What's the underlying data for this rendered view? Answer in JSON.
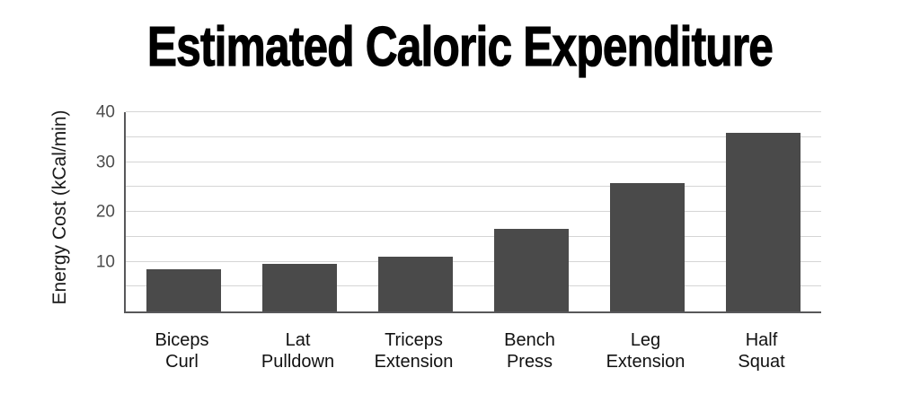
{
  "chart_data": {
    "type": "bar",
    "title": "Estimated Caloric Expenditure",
    "ylabel": "Energy Cost (kCal/min)",
    "xlabel": "",
    "categories": [
      "Biceps\nCurl",
      "Lat\nPulldown",
      "Triceps\nExtension",
      "Bench\nPress",
      "Leg\nExtension",
      "Half\nSquat"
    ],
    "values": [
      8.5,
      9.5,
      11,
      16.6,
      25.8,
      35.9
    ],
    "ylim": [
      0,
      40
    ],
    "ytick_values": [
      10,
      20,
      30,
      40
    ],
    "gridline_step": 5,
    "grid": true,
    "legend": false,
    "colors": {
      "bar": "#4a4a4a",
      "gridline": "#d5d5d5",
      "axis": "#58585a",
      "tick_label": "#4d4d4d",
      "category_label": "#111111",
      "title": "#000000"
    }
  }
}
